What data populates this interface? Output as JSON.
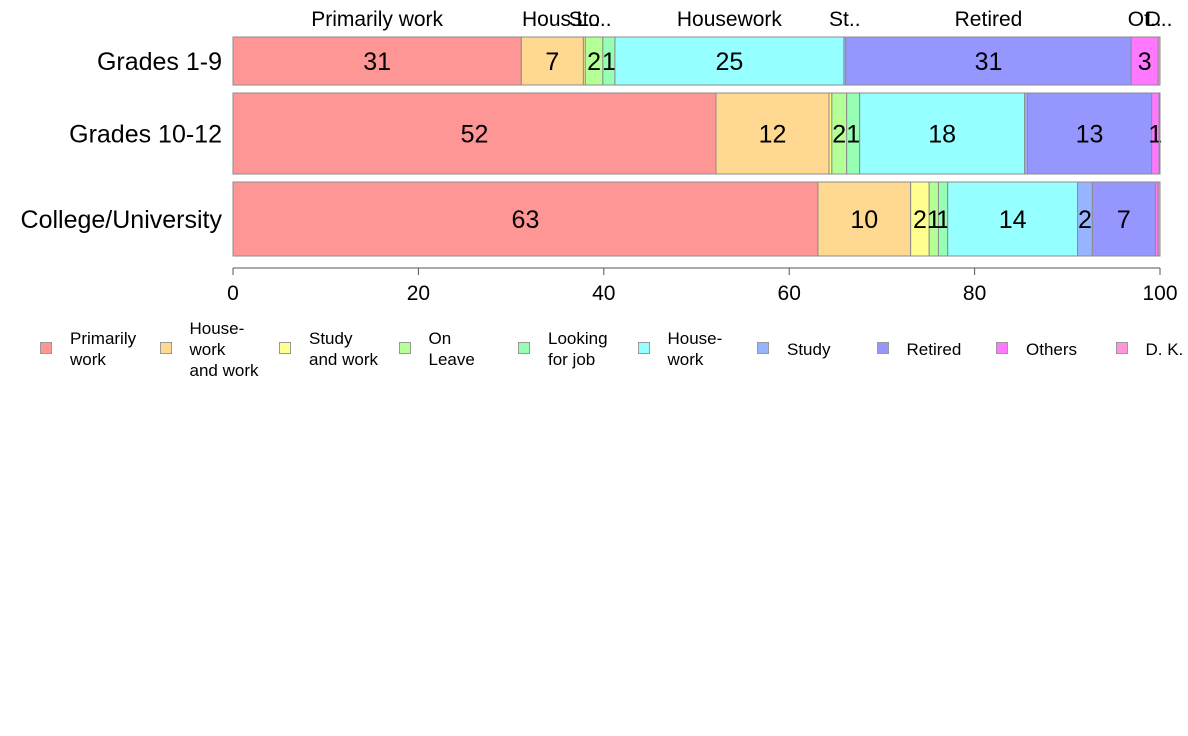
{
  "chart_data": {
    "type": "bar",
    "orientation": "horizontal",
    "stacked": true,
    "categories": [
      "Grades 1-9",
      "Grades 10-12",
      "College/University"
    ],
    "series": [
      {
        "name": "Primarily work",
        "legend_label": "Primarily\nwork",
        "color": "#ff9696",
        "values": [
          31.1,
          52.1,
          63.1
        ]
      },
      {
        "name": "House-work and work",
        "legend_label": "House-\nwork\nand work",
        "color": "#ffd891",
        "values": [
          6.7,
          12.2,
          10.0
        ]
      },
      {
        "name": "Study and work",
        "legend_label": "Study\nand work",
        "color": "#ffff8f",
        "values": [
          0.2,
          0.3,
          2.0
        ]
      },
      {
        "name": "On Leave",
        "legend_label": "On\nLeave",
        "color": "#b4ff96",
        "values": [
          1.9,
          1.6,
          1.0
        ]
      },
      {
        "name": "Looking for job",
        "legend_label": "Looking\nfor job",
        "color": "#96ffb4",
        "values": [
          1.3,
          1.4,
          1.0
        ]
      },
      {
        "name": "House-work",
        "legend_label": "House-\nwork",
        "color": "#96ffff",
        "values": [
          24.7,
          17.8,
          14.0
        ]
      },
      {
        "name": "Study",
        "legend_label": "Study",
        "color": "#96b4ff",
        "values": [
          0.2,
          0.3,
          1.6
        ]
      },
      {
        "name": "Retired",
        "legend_label": "Retired",
        "color": "#9696ff",
        "values": [
          30.8,
          13.4,
          6.8
        ]
      },
      {
        "name": "Others",
        "legend_label": "Others",
        "color": "#ff78ff",
        "values": [
          2.9,
          0.8,
          0.3
        ]
      },
      {
        "name": "D. K.",
        "legend_label": "D. K.",
        "color": "#ff96d8",
        "values": [
          0.2,
          0.1,
          0.2
        ]
      }
    ],
    "segment_labels": [
      [
        "31",
        "7",
        "",
        "2",
        "1",
        "25",
        "",
        "31",
        "3",
        ""
      ],
      [
        "52",
        "12",
        "",
        "2",
        "1",
        "18",
        "",
        "13",
        "1",
        ""
      ],
      [
        "63",
        "10",
        "2",
        "1",
        "1",
        "14",
        "2",
        "7",
        "",
        ""
      ]
    ],
    "top_labels": [
      "Primarily work",
      "Hous..",
      "St..",
      "Lo..",
      "",
      "Housework",
      "St..",
      "Retired",
      "Ot..",
      "D.."
    ],
    "xlim": [
      0,
      100
    ],
    "xticks": [
      0,
      20,
      40,
      60,
      80,
      100
    ],
    "title": "",
    "xlabel": "",
    "ylabel": "",
    "grid": false,
    "legend_position": "bottom"
  }
}
